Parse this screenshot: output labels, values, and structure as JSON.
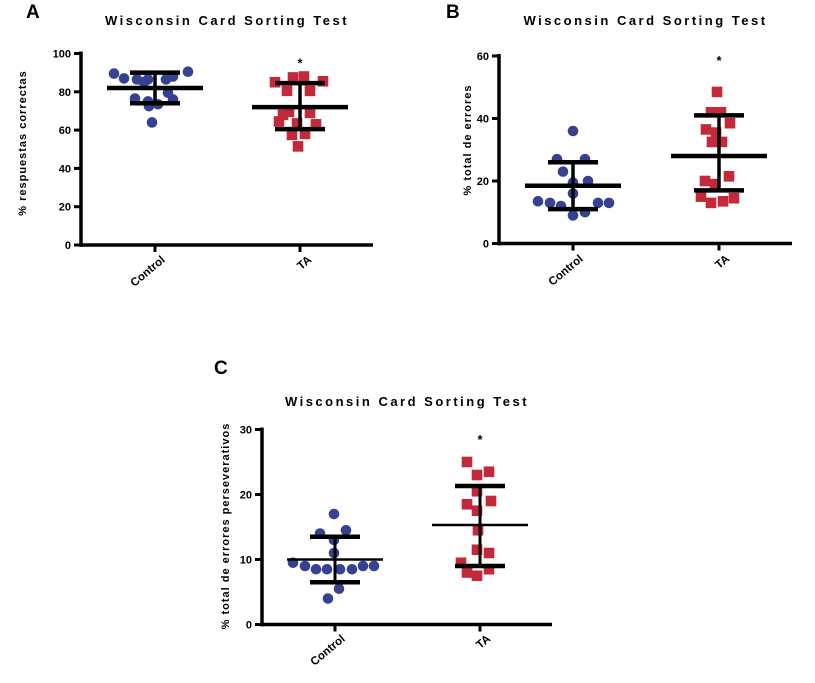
{
  "figure": {
    "background": "#ffffff",
    "colors": {
      "control_blue": "#364191",
      "ta_red": "#C3293B",
      "axis_black": "#000000"
    }
  },
  "chart_data": [
    {
      "type": "scatter",
      "panel": "A",
      "title": "Wisconsin Card Sorting Test",
      "ylabel": "% respuestas correctas",
      "ylim": [
        0,
        100
      ],
      "yticks": [
        0,
        20,
        40,
        60,
        80,
        100
      ],
      "categories": [
        "Control",
        "TA"
      ],
      "grid": false,
      "legend": "none",
      "series": [
        {
          "name": "Control",
          "marker": "circle",
          "color": "#364191",
          "mean": 82,
          "err_hi": 90,
          "err_lo": 74,
          "significance": "",
          "sig_y": null,
          "points": [
            [
              -41,
              89.5
            ],
            [
              -31,
              87
            ],
            [
              -18,
              86.5
            ],
            [
              -11,
              85
            ],
            [
              -7,
              86.5
            ],
            [
              11,
              86.5
            ],
            [
              18,
              88
            ],
            [
              33,
              90.5
            ],
            [
              -20,
              76.5
            ],
            [
              -7,
              75
            ],
            [
              -6,
              72.5
            ],
            [
              3,
              73.5
            ],
            [
              13,
              79.5
            ],
            [
              18,
              76
            ],
            [
              -3,
              64
            ]
          ]
        },
        {
          "name": "TA",
          "marker": "square",
          "color": "#C3293B",
          "mean": 72,
          "err_hi": 84.5,
          "err_lo": 60.5,
          "significance": "*",
          "sig_y": 95,
          "points": [
            [
              -25,
              85
            ],
            [
              -7,
              87.5
            ],
            [
              4,
              88
            ],
            [
              23,
              85.5
            ],
            [
              -13,
              80.5
            ],
            [
              10,
              80.5
            ],
            [
              -17,
              68
            ],
            [
              -11,
              69.5
            ],
            [
              10,
              69
            ],
            [
              -21,
              64.5
            ],
            [
              -3,
              63.5
            ],
            [
              16,
              63
            ],
            [
              -8,
              57.5
            ],
            [
              5,
              58
            ],
            [
              -2,
              51.5
            ]
          ]
        }
      ]
    },
    {
      "type": "scatter",
      "panel": "B",
      "title": "Wisconsin Card Sorting Test",
      "ylabel": "% total de errores",
      "ylim": [
        0,
        60
      ],
      "yticks": [
        0,
        20,
        40,
        60
      ],
      "categories": [
        "Control",
        "TA"
      ],
      "grid": false,
      "legend": "none",
      "series": [
        {
          "name": "Control",
          "marker": "circle",
          "color": "#364191",
          "mean": 18.5,
          "err_hi": 26,
          "err_lo": 11,
          "significance": "",
          "sig_y": null,
          "points": [
            [
              0,
              36
            ],
            [
              -16,
              27
            ],
            [
              12,
              27
            ],
            [
              -10,
              23
            ],
            [
              15,
              20
            ],
            [
              0,
              19.5
            ],
            [
              0,
              16
            ],
            [
              -35,
              13.5
            ],
            [
              -23,
              13
            ],
            [
              -12,
              12
            ],
            [
              25,
              13
            ],
            [
              36,
              13
            ],
            [
              0,
              9
            ],
            [
              12,
              10
            ]
          ]
        },
        {
          "name": "TA",
          "marker": "square",
          "color": "#C3293B",
          "mean": 28,
          "err_hi": 41,
          "err_lo": 17,
          "significance": "*",
          "sig_y": 58.5,
          "points": [
            [
              -2,
              48.5
            ],
            [
              -8,
              42
            ],
            [
              2,
              42
            ],
            [
              11,
              38.5
            ],
            [
              -13,
              36.5
            ],
            [
              -3,
              35.5
            ],
            [
              -7,
              32.5
            ],
            [
              3,
              32.5
            ],
            [
              10,
              21.5
            ],
            [
              -14,
              20
            ],
            [
              -4,
              19
            ],
            [
              -18,
              15
            ],
            [
              -8,
              13
            ],
            [
              4,
              13.5
            ],
            [
              15,
              14.5
            ]
          ]
        }
      ]
    },
    {
      "type": "scatter",
      "panel": "C",
      "title": "Wisconsin Card Sorting Test",
      "ylabel": "% total de errores perseverativos",
      "ylim": [
        0,
        30
      ],
      "yticks": [
        0,
        10,
        20,
        30
      ],
      "categories": [
        "Control",
        "TA"
      ],
      "grid": false,
      "legend": "none",
      "series": [
        {
          "name": "Control",
          "marker": "circle",
          "color": "#364191",
          "mean": 10,
          "err_hi": 13.5,
          "err_lo": 6.5,
          "significance": "",
          "sig_y": null,
          "points": [
            [
              -1,
              17
            ],
            [
              11,
              14.5
            ],
            [
              -15,
              14
            ],
            [
              -1,
              13
            ],
            [
              -1,
              11
            ],
            [
              -42,
              9.5
            ],
            [
              -30,
              9
            ],
            [
              -19,
              8.5
            ],
            [
              -8,
              8.5
            ],
            [
              5,
              8.5
            ],
            [
              17,
              8.5
            ],
            [
              28,
              9
            ],
            [
              39,
              9
            ],
            [
              4,
              5.5
            ],
            [
              -7,
              4
            ]
          ]
        },
        {
          "name": "TA",
          "marker": "square",
          "color": "#C3293B",
          "mean": 15.3,
          "err_hi": 21.3,
          "err_lo": 9,
          "significance": "*",
          "sig_y": 28.5,
          "points": [
            [
              -13,
              25
            ],
            [
              -3,
              23
            ],
            [
              9,
              23.5
            ],
            [
              -3,
              20.5
            ],
            [
              -13,
              18.5
            ],
            [
              11,
              19
            ],
            [
              -3,
              17.5
            ],
            [
              -2,
              14.5
            ],
            [
              -3,
              11.5
            ],
            [
              9,
              11
            ],
            [
              -19,
              9.5
            ],
            [
              -13,
              8
            ],
            [
              -3,
              7.5
            ],
            [
              9,
              8.5
            ]
          ]
        }
      ]
    }
  ]
}
